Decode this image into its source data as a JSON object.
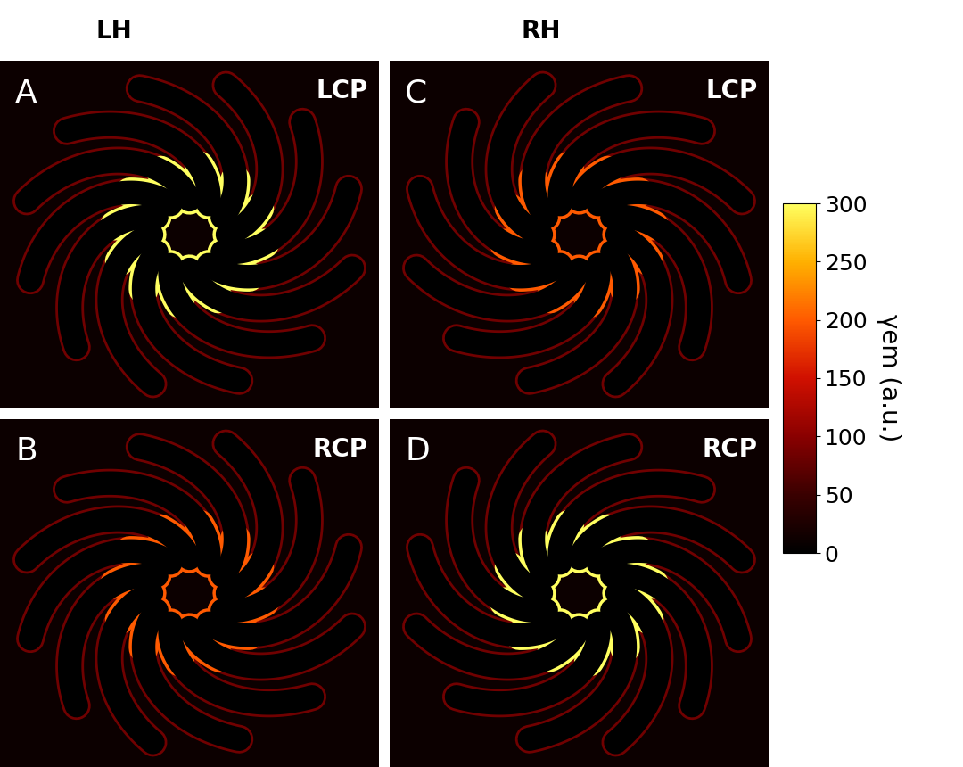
{
  "chart_data": {
    "type": "heatmap",
    "columns": [
      "LH",
      "RH"
    ],
    "panels": [
      {
        "label": "A",
        "column": "LH",
        "polarization": "LCP",
        "peak": 300
      },
      {
        "label": "B",
        "column": "LH",
        "polarization": "RCP",
        "peak": 200
      },
      {
        "label": "C",
        "column": "RH",
        "polarization": "LCP",
        "peak": 200
      },
      {
        "label": "D",
        "column": "RH",
        "polarization": "RCP",
        "peak": 300
      }
    ],
    "colorbar": {
      "label": "γem (a.u.)",
      "range": [
        0,
        300
      ],
      "ticks": [
        0,
        50,
        100,
        150,
        200,
        250,
        300
      ]
    }
  }
}
